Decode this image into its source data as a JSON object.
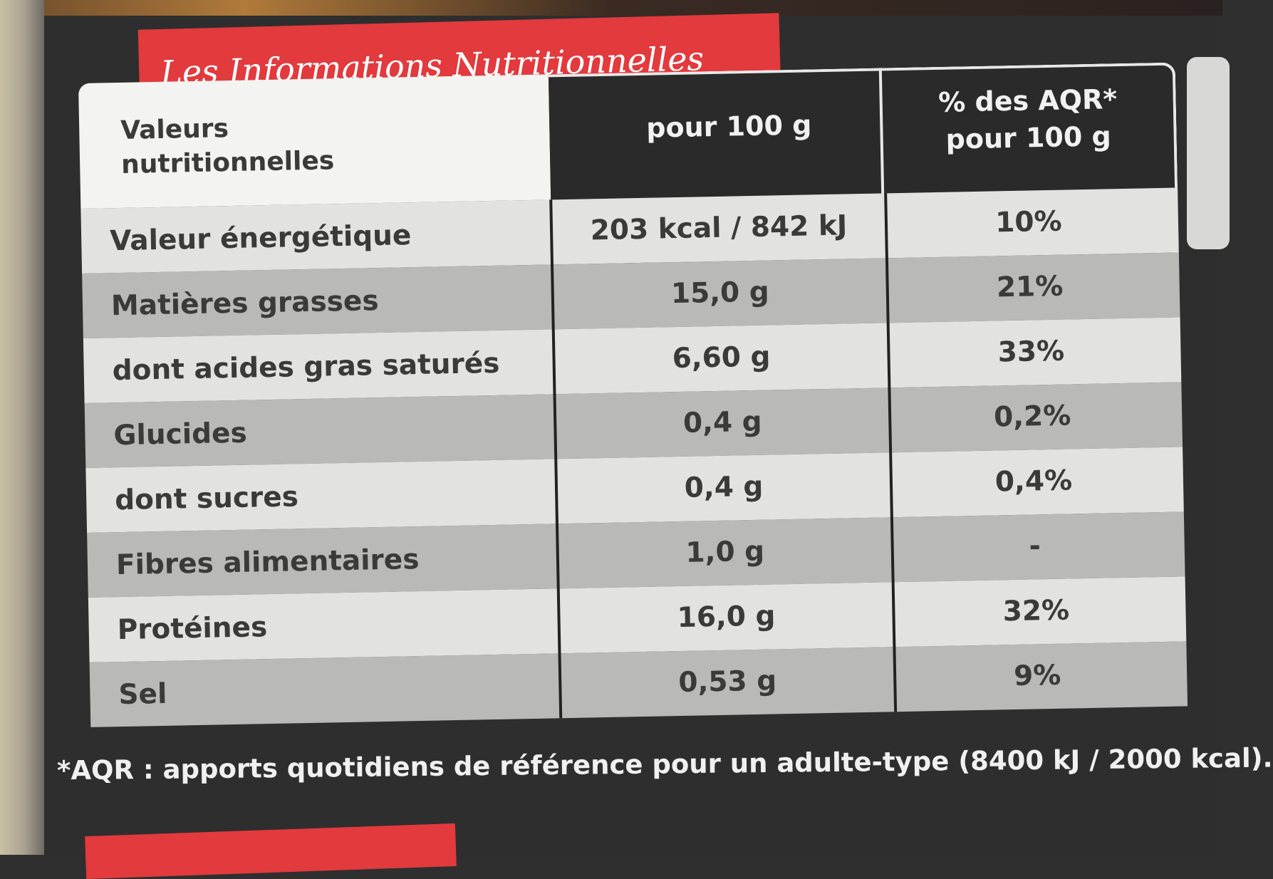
{
  "title": "Les Informations Nutritionnelles",
  "header": {
    "label": "Valeurs nutritionnelles",
    "col2": "pour 100 g",
    "col3_line1": "% des AQR*",
    "col3_line2": "pour 100 g"
  },
  "rows": [
    {
      "name": "Valeur énergétique",
      "value": "203 kcal / 842 kJ",
      "aqr": "10%"
    },
    {
      "name": "Matières grasses",
      "value": "15,0 g",
      "aqr": "21%"
    },
    {
      "name": "dont acides gras saturés",
      "value": "6,60 g",
      "aqr": "33%"
    },
    {
      "name": "Glucides",
      "value": "0,4 g",
      "aqr": "0,2%"
    },
    {
      "name": "dont sucres",
      "value": "0,4 g",
      "aqr": "0,4%"
    },
    {
      "name": "Fibres alimentaires",
      "value": "1,0 g",
      "aqr": "-"
    },
    {
      "name": "Protéines",
      "value": "16,0 g",
      "aqr": "32%"
    },
    {
      "name": "Sel",
      "value": "0,53 g",
      "aqr": "9%"
    }
  ],
  "footnote": "*AQR : apports quotidiens de référence pour un adulte-type (8400 kJ / 2000 kcal)."
}
